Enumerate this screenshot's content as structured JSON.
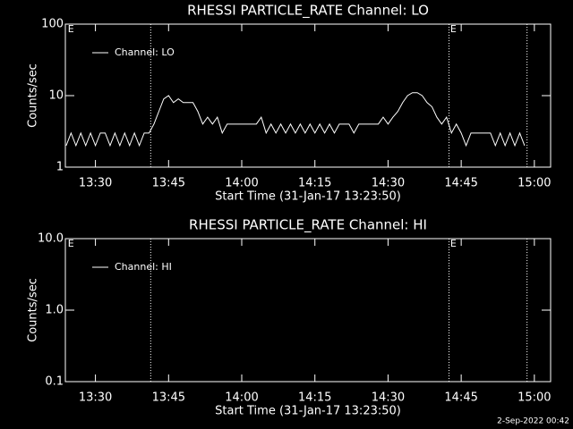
{
  "chart_data": [
    {
      "type": "line",
      "title": "RHESSI PARTICLE_RATE Channel: LO",
      "xlabel": "Start Time (31-Jan-17 13:23:50)",
      "ylabel": "Counts/sec",
      "x": [
        "13:24",
        "13:25",
        "13:26",
        "13:27",
        "13:28",
        "13:29",
        "13:30",
        "13:31",
        "13:32",
        "13:33",
        "13:34",
        "13:35",
        "13:36",
        "13:37",
        "13:38",
        "13:39",
        "13:40",
        "13:41",
        "13:42",
        "13:43",
        "13:44",
        "13:45",
        "13:46",
        "13:47",
        "13:48",
        "13:49",
        "13:50",
        "13:51",
        "13:52",
        "13:53",
        "13:54",
        "13:55",
        "13:56",
        "13:57",
        "13:58",
        "13:59",
        "14:00",
        "14:01",
        "14:02",
        "14:03",
        "14:04",
        "14:05",
        "14:06",
        "14:07",
        "14:08",
        "14:09",
        "14:10",
        "14:11",
        "14:12",
        "14:13",
        "14:14",
        "14:15",
        "14:16",
        "14:17",
        "14:18",
        "14:19",
        "14:20",
        "14:21",
        "14:22",
        "14:23",
        "14:24",
        "14:25",
        "14:26",
        "14:27",
        "14:28",
        "14:29",
        "14:30",
        "14:31",
        "14:32",
        "14:33",
        "14:34",
        "14:35",
        "14:36",
        "14:37",
        "14:38",
        "14:39",
        "14:40",
        "14:41",
        "14:42",
        "14:43",
        "14:44",
        "14:45",
        "14:46",
        "14:47",
        "14:48",
        "14:49",
        "14:50",
        "14:51",
        "14:52",
        "14:53",
        "14:54",
        "14:55",
        "14:56",
        "14:57",
        "14:58"
      ],
      "series": [
        {
          "name": "Channel: LO",
          "color": "#ffffff",
          "values": [
            2,
            3,
            2,
            3,
            2,
            3,
            2,
            3,
            3,
            2,
            3,
            2,
            3,
            2,
            3,
            2,
            3,
            3,
            4,
            6,
            9,
            10,
            8,
            9,
            8,
            8,
            8,
            6,
            4,
            5,
            4,
            5,
            3,
            4,
            4,
            4,
            4,
            4,
            4,
            4,
            5,
            3,
            4,
            3,
            4,
            3,
            4,
            3,
            4,
            3,
            4,
            3,
            4,
            3,
            4,
            3,
            4,
            4,
            4,
            3,
            4,
            4,
            4,
            4,
            4,
            5,
            4,
            5,
            6,
            8,
            10,
            11,
            11,
            10,
            8,
            7,
            5,
            4,
            5,
            3,
            4,
            3,
            2,
            3,
            3,
            3,
            3,
            3,
            2,
            3,
            2,
            3,
            2,
            3,
            2
          ]
        }
      ],
      "xlim": [
        "13:23:50",
        "15:03:20"
      ],
      "xticks": [
        "13:30",
        "13:45",
        "14:00",
        "14:15",
        "14:30",
        "14:45",
        "15:00"
      ],
      "ylim": [
        1,
        100
      ],
      "yticks": [
        1,
        10,
        100
      ],
      "log_y": true,
      "legend": "upper left",
      "vlines": [
        "13:41:20",
        "14:42:30",
        "14:58:30"
      ],
      "annotations": [
        {
          "text": "E",
          "x": "13:24:20"
        },
        {
          "text": "E",
          "x": "14:42:45"
        }
      ]
    },
    {
      "type": "line",
      "title": "RHESSI PARTICLE_RATE Channel: HI",
      "xlabel": "Start Time (31-Jan-17 13:23:50)",
      "ylabel": "Counts/sec",
      "series": [
        {
          "name": "Channel: HI",
          "color": "#ffffff"
        }
      ],
      "xlim": [
        "13:23:50",
        "15:03:20"
      ],
      "xticks": [
        "13:30",
        "13:45",
        "14:00",
        "14:15",
        "14:30",
        "14:45",
        "15:00"
      ],
      "ylim": [
        0.1,
        10
      ],
      "yticks": [
        {
          "value": 0.1,
          "label": "0.1"
        },
        {
          "value": 1,
          "label": "1.0"
        },
        {
          "value": 10,
          "label": "10.0"
        }
      ],
      "log_y": true,
      "legend": "upper left",
      "vlines": [
        "13:41:20",
        "14:42:30",
        "14:58:30"
      ],
      "annotations": [
        {
          "text": "E",
          "x": "13:24:20"
        },
        {
          "text": "E",
          "x": "14:42:45"
        }
      ]
    }
  ],
  "footer": "2-Sep-2022 00:42"
}
